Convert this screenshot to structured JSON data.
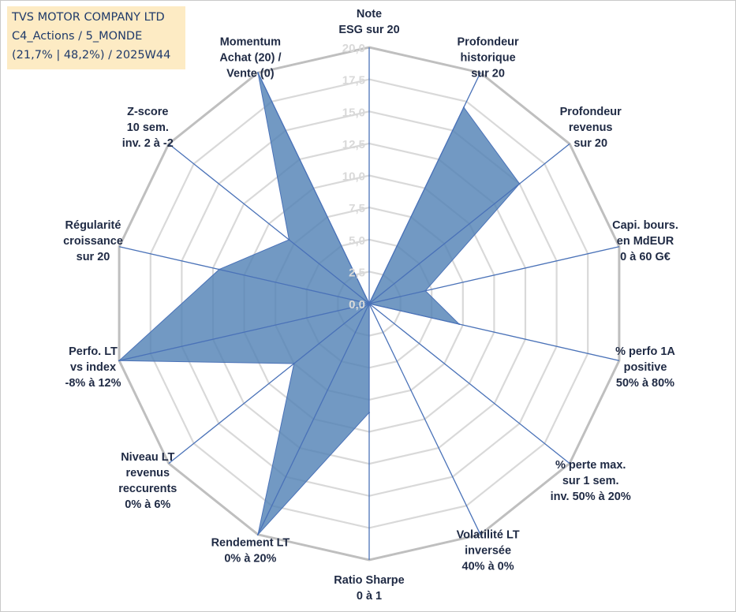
{
  "header": {
    "line1": "TVS MOTOR COMPANY LTD",
    "line2": "C4_Actions / 5_MONDE",
    "line3": "(21,7% | 48,2%) / 2025W44"
  },
  "colors": {
    "fill": "#4f7fb4",
    "stroke": "#4a72b8",
    "grid": "#d9d9d9",
    "outer": "#bfbfbf",
    "title_bg": "#fdebc4"
  },
  "chart_data": {
    "type": "radar",
    "rmin": 0,
    "rmax": 20,
    "ticks": [
      "0,0",
      "2,5",
      "5,0",
      "7,5",
      "10,0",
      "12,5",
      "15,0",
      "17,5",
      "20,0"
    ],
    "axes": [
      {
        "lines": [
          "Note",
          "ESG sur 20"
        ],
        "value": 0
      },
      {
        "lines": [
          "Profondeur",
          "historique",
          "sur 20"
        ],
        "value": 17
      },
      {
        "lines": [
          "Profondeur",
          "revenus",
          "sur 20"
        ],
        "value": 15
      },
      {
        "lines": [
          "Capi. bours.",
          "en MdEUR",
          "0 à 60 G€"
        ],
        "value": 4.5
      },
      {
        "lines": [
          "% perfo 1A",
          "positive",
          "50% à 80%"
        ],
        "value": 7.2
      },
      {
        "lines": [
          "% perte max.",
          "sur 1 sem.",
          "inv. 50% à 20%"
        ],
        "value": 0
      },
      {
        "lines": [
          "Volatilité LT",
          "inversée",
          "40% à 0%"
        ],
        "value": 0
      },
      {
        "lines": [
          "Ratio Sharpe",
          "0 à 1"
        ],
        "value": 8.5
      },
      {
        "lines": [
          "Rendement LT",
          "0% à 20%"
        ],
        "value": 20
      },
      {
        "lines": [
          "Niveau LT",
          "revenus",
          "reccurents",
          "0% à 6%"
        ],
        "value": 7.5
      },
      {
        "lines": [
          "Perfo. LT",
          "vs index",
          "-8% à 12%"
        ],
        "value": 20
      },
      {
        "lines": [
          "Régularité",
          "croissance",
          "sur 20"
        ],
        "value": 12
      },
      {
        "lines": [
          "Z-score",
          "10 sem.",
          "inv. 2 à -2"
        ],
        "value": 8
      },
      {
        "lines": [
          "Momentum",
          "Achat (20) /",
          "Vente (0)"
        ],
        "value": 20
      }
    ]
  }
}
